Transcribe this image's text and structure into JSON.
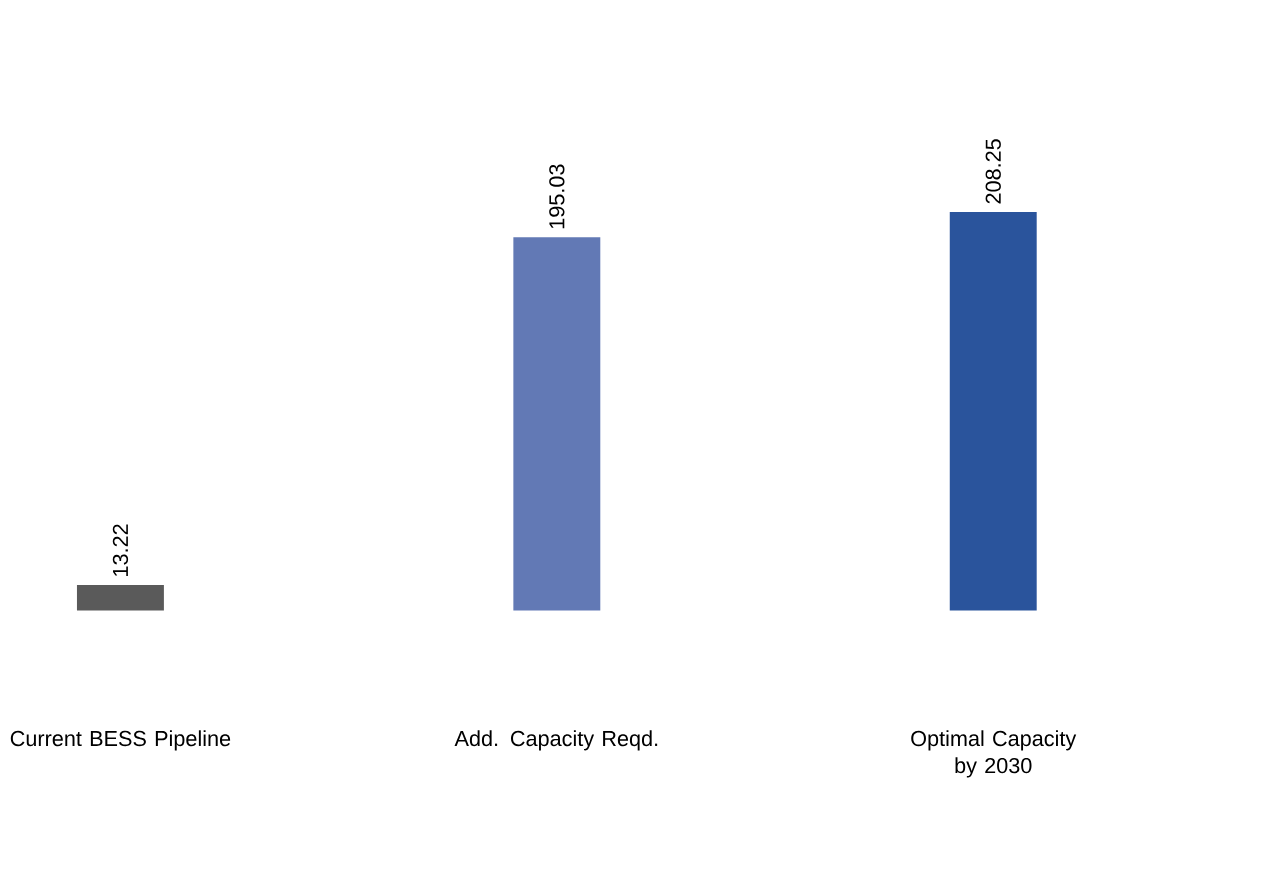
{
  "chart_data": {
    "type": "bar",
    "categories": [
      "Current BESS Pipeline",
      "Add. Capacity Reqd.",
      "Optimal Capacity by 2030"
    ],
    "values": [
      13.22,
      195.03,
      208.25
    ],
    "colors": [
      "#5a5a5a",
      "#6279b5",
      "#2a549c"
    ],
    "data_labels": true
  }
}
